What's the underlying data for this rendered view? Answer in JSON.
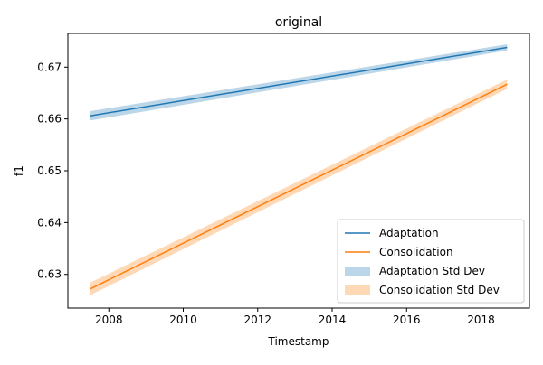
{
  "chart_data": {
    "type": "line",
    "title": "original",
    "xlabel": "Timestamp",
    "ylabel": "f1",
    "xlim": [
      2006.9,
      2019.3
    ],
    "ylim": [
      0.6235,
      0.6765
    ],
    "x_ticks": [
      2008,
      2010,
      2012,
      2014,
      2016,
      2018
    ],
    "y_ticks": [
      0.63,
      0.64,
      0.65,
      0.66,
      0.67
    ],
    "x_tick_labels": [
      "2008",
      "2010",
      "2012",
      "2014",
      "2016",
      "2018"
    ],
    "y_tick_labels": [
      "0.63",
      "0.64",
      "0.65",
      "0.66",
      "0.67"
    ],
    "legend_position": "lower right",
    "grid": false,
    "series": [
      {
        "name": "Adaptation",
        "color": "#1f77b4",
        "x": [
          2007.5,
          2018.7
        ],
        "values": [
          0.6606,
          0.6738
        ],
        "std_name": "Adaptation Std Dev",
        "std": [
          0.0009,
          0.0006
        ]
      },
      {
        "name": "Consolidation",
        "color": "#ff7f0e",
        "x": [
          2007.5,
          2018.7
        ],
        "values": [
          0.6272,
          0.6667
        ],
        "std_name": "Consolidation Std Dev",
        "std": [
          0.0012,
          0.0009
        ]
      }
    ]
  }
}
